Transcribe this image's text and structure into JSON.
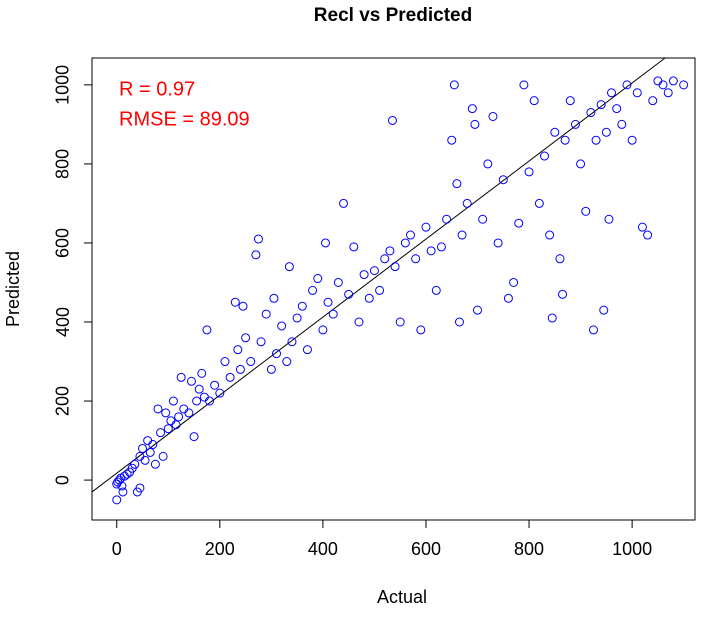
{
  "chart_data": {
    "type": "scatter",
    "title": "Recl vs Predicted",
    "x_label": "Actual",
    "y_label": "Predicted",
    "annotations": [
      "R = 0.97",
      "RMSE = 89.09"
    ],
    "annotation_color": "#ff0000",
    "color": "#0000ff",
    "xlim": [
      -48,
      1122
    ],
    "ylim": [
      -101,
      1068
    ],
    "xticks": [
      0,
      200,
      400,
      600,
      800,
      1000
    ],
    "yticks": [
      0,
      200,
      400,
      600,
      800,
      1000
    ],
    "reference_line": {
      "x": [
        -48,
        1064
      ],
      "y": [
        -30,
        1068
      ]
    },
    "x": [
      0,
      2,
      5,
      8,
      10,
      15,
      20,
      0,
      12,
      25,
      30,
      35,
      40,
      45,
      50,
      45,
      55,
      60,
      65,
      70,
      75,
      80,
      85,
      90,
      95,
      100,
      105,
      110,
      115,
      120,
      125,
      130,
      140,
      145,
      150,
      155,
      160,
      165,
      170,
      175,
      180,
      190,
      200,
      210,
      220,
      230,
      235,
      240,
      245,
      250,
      260,
      270,
      275,
      280,
      290,
      300,
      305,
      310,
      320,
      330,
      335,
      340,
      350,
      360,
      370,
      380,
      390,
      400,
      405,
      410,
      420,
      430,
      440,
      450,
      460,
      470,
      480,
      490,
      500,
      510,
      520,
      530,
      535,
      540,
      550,
      560,
      570,
      580,
      590,
      600,
      610,
      620,
      630,
      640,
      650,
      655,
      660,
      665,
      670,
      680,
      690,
      695,
      700,
      710,
      720,
      730,
      740,
      750,
      760,
      770,
      780,
      790,
      800,
      810,
      820,
      830,
      840,
      845,
      850,
      860,
      865,
      870,
      880,
      890,
      900,
      910,
      920,
      925,
      930,
      940,
      945,
      950,
      955,
      960,
      970,
      980,
      990,
      1000,
      1010,
      1020,
      1030,
      1040,
      1050,
      1060,
      1070,
      1080,
      1100
    ],
    "y": [
      -10,
      -5,
      0,
      5,
      -15,
      10,
      15,
      -50,
      -30,
      20,
      30,
      40,
      -30,
      60,
      80,
      -20,
      50,
      100,
      70,
      90,
      40,
      180,
      120,
      60,
      170,
      130,
      150,
      200,
      140,
      160,
      260,
      180,
      170,
      250,
      110,
      200,
      230,
      270,
      210,
      380,
      200,
      240,
      220,
      300,
      260,
      450,
      330,
      280,
      440,
      360,
      300,
      570,
      610,
      350,
      420,
      280,
      460,
      320,
      390,
      300,
      540,
      350,
      410,
      440,
      330,
      480,
      510,
      380,
      600,
      450,
      420,
      500,
      700,
      470,
      590,
      400,
      520,
      460,
      530,
      480,
      560,
      580,
      910,
      540,
      400,
      600,
      620,
      560,
      380,
      640,
      580,
      480,
      590,
      660,
      860,
      1000,
      750,
      400,
      620,
      700,
      940,
      900,
      430,
      660,
      800,
      920,
      600,
      760,
      460,
      500,
      650,
      1000,
      780,
      960,
      700,
      820,
      620,
      410,
      880,
      560,
      470,
      860,
      960,
      900,
      800,
      680,
      930,
      380,
      860,
      950,
      430,
      880,
      660,
      980,
      940,
      900,
      1000,
      860,
      980,
      640,
      620,
      960,
      1010,
      1000,
      980,
      1010,
      1000
    ]
  }
}
